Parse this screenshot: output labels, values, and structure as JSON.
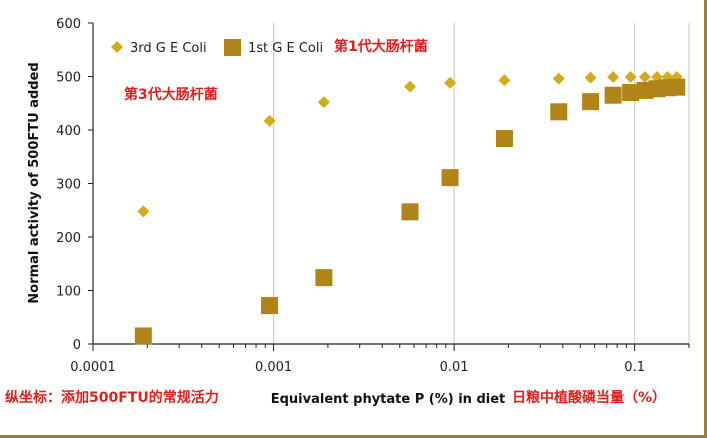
{
  "chart_data": {
    "type": "scatter",
    "xscale": "log",
    "xlim": [
      0.0001,
      0.2
    ],
    "ylim": [
      0,
      600
    ],
    "xticks": [
      {
        "value": 0.0001,
        "label": "0.0001"
      },
      {
        "value": 0.001,
        "label": "0.001"
      },
      {
        "value": 0.01,
        "label": "0.01"
      },
      {
        "value": 0.1,
        "label": "0.1"
      }
    ],
    "yticks": [
      0,
      100,
      200,
      300,
      400,
      500,
      600
    ],
    "xlabel": "Equivalent phytate P (%) in diet",
    "ylabel": "Normal activity of 500FTU added",
    "grid": "vertical gridlines at decades",
    "legend_position": "top-left",
    "series": [
      {
        "name": "3rd G E Coli",
        "marker": "diamond",
        "color": "#d4ab1c",
        "points": [
          {
            "x": 0.00019,
            "y": 248
          },
          {
            "x": 0.00095,
            "y": 417
          },
          {
            "x": 0.0019,
            "y": 452
          },
          {
            "x": 0.0057,
            "y": 481
          },
          {
            "x": 0.0095,
            "y": 488
          },
          {
            "x": 0.019,
            "y": 493
          },
          {
            "x": 0.038,
            "y": 496
          },
          {
            "x": 0.057,
            "y": 498
          },
          {
            "x": 0.076,
            "y": 499
          },
          {
            "x": 0.095,
            "y": 499
          },
          {
            "x": 0.114,
            "y": 499
          },
          {
            "x": 0.133,
            "y": 499
          },
          {
            "x": 0.152,
            "y": 499
          },
          {
            "x": 0.171,
            "y": 499
          }
        ]
      },
      {
        "name": "1st G E Coli",
        "marker": "square",
        "color": "#b08418",
        "points": [
          {
            "x": 0.00019,
            "y": 15
          },
          {
            "x": 0.00095,
            "y": 72
          },
          {
            "x": 0.0019,
            "y": 124
          },
          {
            "x": 0.0057,
            "y": 247
          },
          {
            "x": 0.0095,
            "y": 311
          },
          {
            "x": 0.019,
            "y": 384
          },
          {
            "x": 0.038,
            "y": 434
          },
          {
            "x": 0.057,
            "y": 453
          },
          {
            "x": 0.076,
            "y": 465
          },
          {
            "x": 0.095,
            "y": 470
          },
          {
            "x": 0.114,
            "y": 474
          },
          {
            "x": 0.133,
            "y": 477
          },
          {
            "x": 0.152,
            "y": 479
          },
          {
            "x": 0.171,
            "y": 480
          }
        ]
      }
    ]
  },
  "annotations": {
    "gen1": "第1代大肠杆菌",
    "gen3": "第3代大肠杆菌",
    "yaxis_note": "纵坐标：添加500FTU的常规活力",
    "xaxis_note": "日粮中植酸磷当量（%）"
  },
  "colors": {
    "annotation_red": "#e0201b",
    "frame_gold": "#9a8038",
    "grid": "#c8c8c8"
  }
}
